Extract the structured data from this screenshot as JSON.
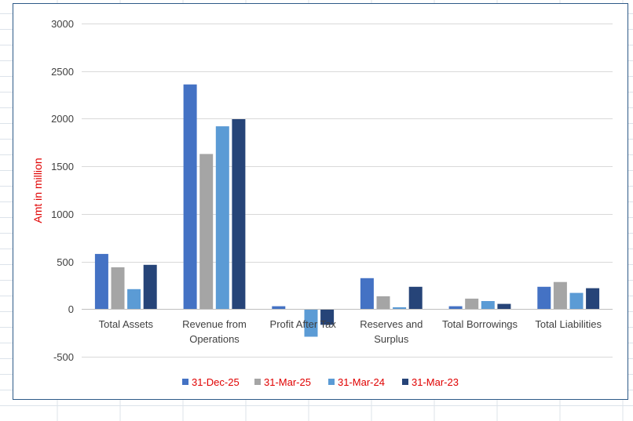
{
  "colors": {
    "ylabel": "#e00000",
    "legend_text": "#e00000",
    "gridline": "#d9d9d9",
    "sheet_grid": "#dce3ea",
    "border": "#2e5a88",
    "axis": "#bfbfbf",
    "tick_text": "#404040"
  },
  "chart_data": {
    "type": "bar",
    "title": "",
    "ylabel": "Amt in million",
    "xlabel": "",
    "ylim": [
      -500,
      3000
    ],
    "yticks": [
      "3000",
      "2500",
      "2000",
      "1500",
      "1000",
      "500",
      "0",
      "-500"
    ],
    "grid": true,
    "legend_position": "bottom",
    "categories": [
      [
        "Total Assets"
      ],
      [
        "Revenue from",
        "Operations"
      ],
      [
        "Profit After Tax"
      ],
      [
        "Reserves and",
        "Surplus"
      ],
      [
        "Total Borrowings"
      ],
      [
        "Total Liabilities"
      ]
    ],
    "series": [
      {
        "name": "31-Dec-25",
        "color": "#4472c4",
        "values": [
          580,
          2360,
          30,
          325,
          30,
          235
        ]
      },
      {
        "name": "31-Mar-25",
        "color": "#a5a5a5",
        "values": [
          440,
          1630,
          0,
          135,
          110,
          285
        ]
      },
      {
        "name": "31-Mar-24",
        "color": "#5b9bd5",
        "values": [
          210,
          1920,
          -290,
          20,
          85,
          170
        ]
      },
      {
        "name": "31-Mar-23",
        "color": "#264478",
        "values": [
          465,
          1995,
          -165,
          235,
          55,
          220
        ]
      }
    ]
  }
}
